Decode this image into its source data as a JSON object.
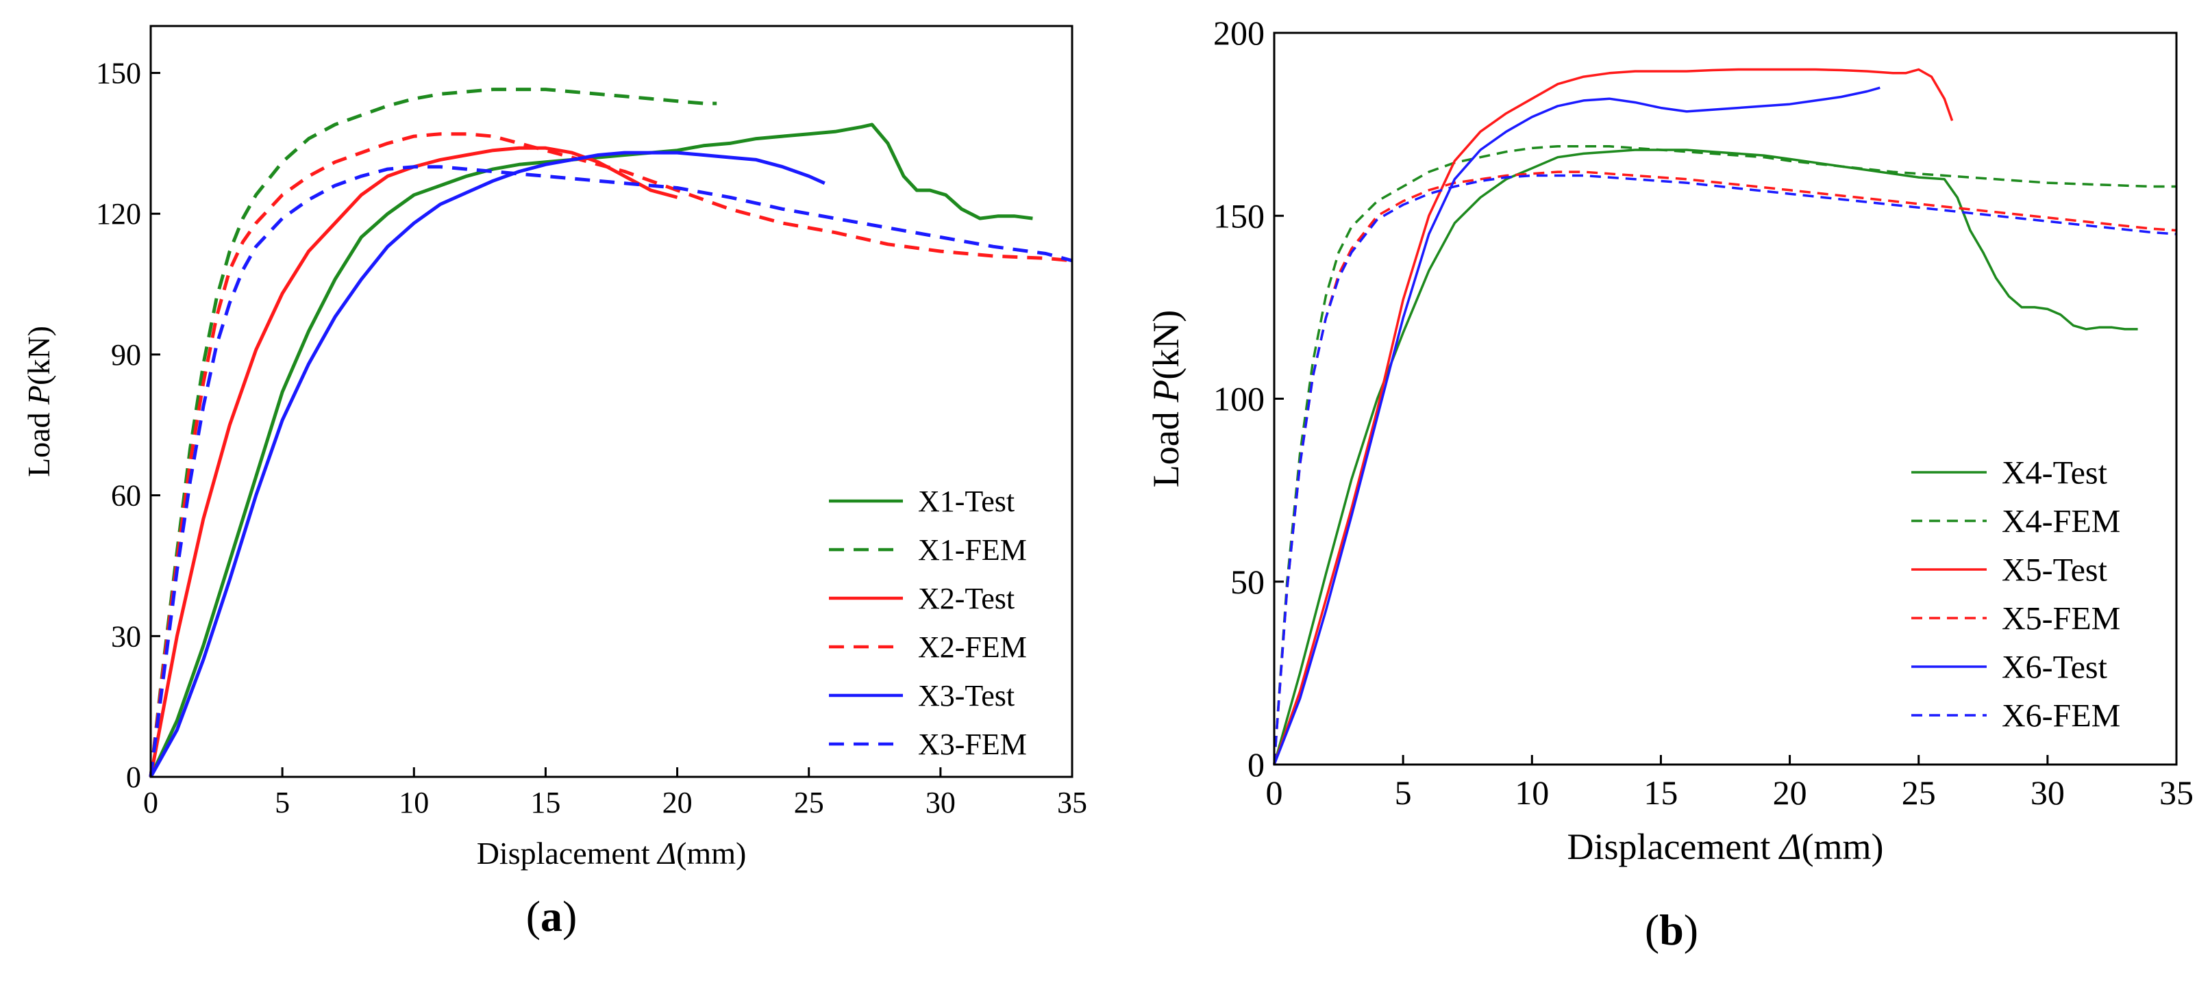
{
  "chart_data": [
    {
      "type": "line",
      "caption": "(a)",
      "xlabel_prefix": "Displacement ",
      "xlabel_symbol": "Δ",
      "xlabel_suffix": "(mm)",
      "ylabel_prefix": "Load ",
      "ylabel_symbol": "P",
      "ylabel_suffix": "(kN)",
      "xlim": [
        0,
        35
      ],
      "ylim": [
        0,
        160
      ],
      "xticks": [
        0,
        5,
        10,
        15,
        20,
        25,
        30,
        35
      ],
      "yticks": [
        0,
        30,
        60,
        90,
        120,
        150
      ],
      "grid": false,
      "legend_position": "bottom-right",
      "series": [
        {
          "name": "X1-Test",
          "color": "#1e8a1e",
          "dash": false,
          "x": [
            0,
            1,
            2,
            3,
            4,
            5,
            6,
            7,
            8,
            9,
            10,
            11,
            12,
            13,
            14,
            15,
            16,
            17,
            18,
            19,
            20,
            21,
            22,
            23,
            24,
            25,
            26,
            27,
            27.4,
            28,
            28.6,
            29.1,
            29.6,
            30.2,
            30.8,
            31.5,
            32.2,
            32.8,
            33.5
          ],
          "y": [
            0,
            12,
            28,
            46,
            64,
            82,
            95,
            106,
            115,
            120,
            124,
            126,
            128,
            129.5,
            130.5,
            131,
            131.5,
            132,
            132.5,
            133,
            133.5,
            134.5,
            135,
            136,
            136.5,
            137,
            137.5,
            138.5,
            139,
            135,
            128,
            125,
            125,
            124,
            121,
            119,
            119.5,
            119.5,
            119
          ]
        },
        {
          "name": "X1-FEM",
          "color": "#1e8a1e",
          "dash": true,
          "x": [
            0,
            0.5,
            1,
            1.5,
            2,
            2.5,
            3,
            3.5,
            4,
            5,
            6,
            7,
            8,
            9,
            10,
            11,
            12,
            13,
            14,
            15,
            16,
            17,
            18,
            19,
            20,
            21,
            21.5
          ],
          "y": [
            0,
            25,
            48,
            70,
            88,
            102,
            112,
            119,
            124,
            131,
            136,
            139,
            141,
            143,
            144.5,
            145.5,
            146,
            146.5,
            146.5,
            146.5,
            146,
            145.5,
            145,
            144.5,
            144,
            143.5,
            143.5
          ]
        },
        {
          "name": "X2-Test",
          "color": "#ff1a1a",
          "dash": false,
          "x": [
            0,
            1,
            2,
            3,
            4,
            5,
            6,
            7,
            8,
            9,
            10,
            11,
            12,
            13,
            14,
            15,
            16,
            17,
            18,
            19,
            20
          ],
          "y": [
            0,
            30,
            55,
            75,
            91,
            103,
            112,
            118,
            124,
            128,
            130,
            131.5,
            132.5,
            133.5,
            134,
            134,
            133,
            131,
            128,
            125,
            123.5
          ]
        },
        {
          "name": "X2-FEM",
          "color": "#ff1a1a",
          "dash": true,
          "x": [
            0,
            0.5,
            1,
            1.5,
            2,
            2.5,
            3,
            3.5,
            4,
            5,
            6,
            7,
            8,
            9,
            10,
            11,
            12,
            13,
            14,
            15,
            16,
            17,
            18,
            19,
            20,
            22,
            24,
            26,
            28,
            30,
            32,
            34,
            35
          ],
          "y": [
            0,
            24,
            46,
            67,
            84,
            98,
            108,
            114,
            118,
            124,
            128,
            131,
            133,
            135,
            136.5,
            137,
            137,
            136.5,
            135,
            133.5,
            132,
            130.5,
            129,
            127,
            125,
            121,
            118,
            116,
            113.5,
            112,
            111,
            110.5,
            110
          ]
        },
        {
          "name": "X3-Test",
          "color": "#1a1aff",
          "dash": false,
          "x": [
            0,
            1,
            2,
            3,
            4,
            5,
            6,
            7,
            8,
            9,
            10,
            11,
            12,
            13,
            14,
            15,
            16,
            17,
            18,
            19,
            20,
            21,
            22,
            23,
            24,
            25,
            25.6
          ],
          "y": [
            0,
            10,
            25,
            42,
            60,
            76,
            88,
            98,
            106,
            113,
            118,
            122,
            124.5,
            127,
            129,
            130.5,
            131.5,
            132.5,
            133,
            133,
            133,
            132.5,
            132,
            131.5,
            130,
            128,
            126.5
          ]
        },
        {
          "name": "X3-FEM",
          "color": "#1a1aff",
          "dash": true,
          "x": [
            0,
            0.5,
            1,
            1.5,
            2,
            2.5,
            3,
            3.5,
            4,
            5,
            6,
            7,
            8,
            9,
            10,
            11,
            12,
            13,
            14,
            15,
            16,
            17,
            18,
            19,
            20,
            22,
            24,
            26,
            28,
            30,
            32,
            34,
            35
          ],
          "y": [
            0,
            22,
            44,
            63,
            79,
            92,
            101,
            108,
            113,
            119,
            123,
            126,
            128,
            129.5,
            130,
            130,
            129.5,
            129,
            128.5,
            128,
            127.5,
            127,
            126.5,
            126,
            125.5,
            123.5,
            121,
            119,
            117,
            115,
            113,
            111.5,
            110
          ]
        }
      ]
    },
    {
      "type": "line",
      "caption": "(b)",
      "xlabel_prefix": "Displacement ",
      "xlabel_symbol": "Δ",
      "xlabel_suffix": "(mm)",
      "ylabel_prefix": "Load ",
      "ylabel_symbol": "P",
      "ylabel_suffix": "(kN)",
      "xlim": [
        0,
        35
      ],
      "ylim": [
        0,
        200
      ],
      "xticks": [
        0,
        5,
        10,
        15,
        20,
        25,
        30,
        35
      ],
      "yticks": [
        0,
        50,
        100,
        150,
        200
      ],
      "grid": false,
      "legend_position": "bottom-right",
      "series": [
        {
          "name": "X4-Test",
          "color": "#1e8a1e",
          "dash": false,
          "x": [
            0,
            1,
            2,
            3,
            4,
            5,
            6,
            7,
            8,
            9,
            10,
            11,
            12,
            13,
            14,
            15,
            16,
            17,
            18,
            19,
            20,
            21,
            22,
            23,
            24,
            25,
            26,
            26.5,
            27,
            27.5,
            28,
            28.5,
            29,
            29.5,
            30,
            30.5,
            31,
            31.5,
            32,
            32.5,
            33,
            33.5
          ],
          "y": [
            0,
            25,
            52,
            78,
            100,
            118,
            135,
            148,
            155,
            160,
            163,
            166,
            167,
            167.5,
            168,
            168,
            168,
            167.5,
            167,
            166.5,
            165.5,
            164.5,
            163.5,
            162.5,
            161.5,
            160.5,
            160,
            155,
            146,
            140,
            133,
            128,
            125,
            125,
            124.5,
            123,
            120,
            119,
            119.5,
            119.5,
            119,
            119
          ]
        },
        {
          "name": "X4-FEM",
          "color": "#1e8a1e",
          "dash": true,
          "x": [
            0,
            0.5,
            1,
            1.5,
            2,
            2.5,
            3,
            4,
            5,
            6,
            7,
            8,
            9,
            10,
            11,
            12,
            13,
            14,
            15,
            16,
            17,
            18,
            19,
            20,
            22,
            24,
            26,
            28,
            30,
            32,
            34,
            35
          ],
          "y": [
            0,
            50,
            85,
            110,
            128,
            140,
            147,
            154,
            158,
            162,
            164.5,
            166,
            167.5,
            168.5,
            169,
            169,
            169,
            168.5,
            168,
            167.5,
            167,
            166.5,
            166,
            165,
            163.5,
            162,
            161,
            160,
            159,
            158.5,
            158,
            158
          ]
        },
        {
          "name": "X5-Test",
          "color": "#ff1a1a",
          "dash": false,
          "x": [
            0,
            1,
            2,
            3,
            4,
            5,
            6,
            7,
            8,
            9,
            10,
            11,
            12,
            13,
            14,
            15,
            16,
            17,
            18,
            19,
            20,
            21,
            22,
            23,
            24,
            24.5,
            25,
            25.5,
            26,
            26.3
          ],
          "y": [
            0,
            20,
            45,
            70,
            97,
            127,
            150,
            165,
            173,
            178,
            182,
            186,
            188,
            189,
            189.5,
            189.5,
            189.5,
            189.8,
            190,
            190,
            190,
            190,
            189.8,
            189.5,
            189,
            189,
            190,
            188,
            182,
            176
          ]
        },
        {
          "name": "X5-FEM",
          "color": "#ff1a1a",
          "dash": true,
          "x": [
            0,
            0.5,
            1,
            1.5,
            2,
            2.5,
            3,
            4,
            5,
            6,
            7,
            8,
            9,
            10,
            11,
            12,
            14,
            16,
            18,
            20,
            22,
            24,
            26,
            28,
            30,
            32,
            34,
            35
          ],
          "y": [
            0,
            48,
            82,
            106,
            122,
            134,
            141,
            150,
            154,
            157,
            159,
            160,
            161,
            161.5,
            162,
            162,
            161,
            160,
            158.5,
            157,
            155.5,
            154,
            152.5,
            151,
            149.5,
            148,
            146.5,
            146
          ]
        },
        {
          "name": "X6-Test",
          "color": "#1a1aff",
          "dash": false,
          "x": [
            0,
            1,
            2,
            3,
            4,
            5,
            6,
            7,
            8,
            9,
            10,
            11,
            12,
            13,
            14,
            15,
            16,
            17,
            18,
            19,
            20,
            21,
            22,
            23,
            23.5
          ],
          "y": [
            0,
            18,
            42,
            68,
            95,
            122,
            145,
            160,
            168,
            173,
            177,
            180,
            181.5,
            182,
            181,
            179.5,
            178.5,
            179,
            179.5,
            180,
            180.5,
            181.5,
            182.5,
            184,
            185
          ]
        },
        {
          "name": "X6-FEM",
          "color": "#1a1aff",
          "dash": true,
          "x": [
            0,
            0.5,
            1,
            1.5,
            2,
            2.5,
            3,
            4,
            5,
            6,
            7,
            8,
            9,
            10,
            11,
            12,
            14,
            16,
            18,
            20,
            22,
            24,
            26,
            28,
            30,
            32,
            34,
            35
          ],
          "y": [
            0,
            48,
            82,
            106,
            122,
            133,
            140,
            149,
            153,
            156,
            158,
            159.5,
            160.5,
            161,
            161,
            161,
            160,
            159,
            157.5,
            156,
            154.5,
            153,
            151.5,
            150,
            148.5,
            147,
            145.5,
            145
          ]
        }
      ]
    }
  ]
}
